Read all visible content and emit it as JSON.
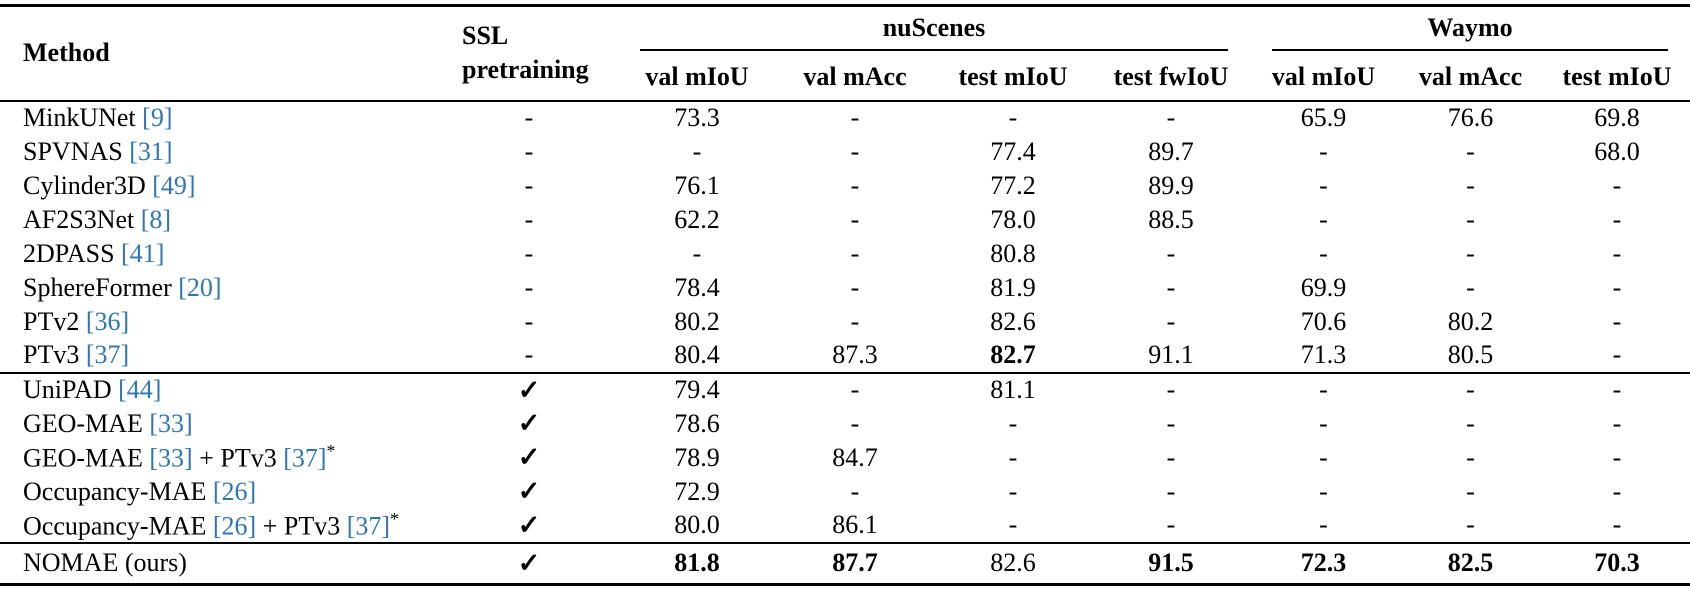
{
  "colors": {
    "citation": "#2f76b5",
    "text": "#000000",
    "background": "#ffffff"
  },
  "table": {
    "header": {
      "method": "Method",
      "ssl_line1": "SSL",
      "ssl_line2": "pretraining",
      "group_nuscenes": "nuScenes",
      "group_waymo": "Waymo",
      "nuscenes_cols": [
        "val mIoU",
        "val mAcc",
        "test mIoU",
        "test fwIoU"
      ],
      "waymo_cols": [
        "val mIoU",
        "val mAcc",
        "test mIoU"
      ]
    },
    "checkmark": "✓",
    "dash": "-",
    "groups": [
      {
        "rows": [
          {
            "method": [
              {
                "text": "MinkUNet ",
                "type": "text"
              },
              {
                "text": "[9]",
                "type": "cite"
              }
            ],
            "ssl": "-",
            "values": [
              "73.3",
              "-",
              "-",
              "-",
              "65.9",
              "76.6",
              "69.8"
            ],
            "bold": [
              false,
              false,
              false,
              false,
              false,
              false,
              false
            ]
          },
          {
            "method": [
              {
                "text": "SPVNAS ",
                "type": "text"
              },
              {
                "text": "[31]",
                "type": "cite"
              }
            ],
            "ssl": "-",
            "values": [
              "-",
              "-",
              "77.4",
              "89.7",
              "-",
              "-",
              "68.0"
            ],
            "bold": [
              false,
              false,
              false,
              false,
              false,
              false,
              false
            ]
          },
          {
            "method": [
              {
                "text": "Cylinder3D ",
                "type": "text"
              },
              {
                "text": "[49]",
                "type": "cite"
              }
            ],
            "ssl": "-",
            "values": [
              "76.1",
              "-",
              "77.2",
              "89.9",
              "-",
              "-",
              "-"
            ],
            "bold": [
              false,
              false,
              false,
              false,
              false,
              false,
              false
            ]
          },
          {
            "method": [
              {
                "text": "AF2S3Net ",
                "type": "text"
              },
              {
                "text": "[8]",
                "type": "cite"
              }
            ],
            "ssl": "-",
            "values": [
              "62.2",
              "-",
              "78.0",
              "88.5",
              "-",
              "-",
              "-"
            ],
            "bold": [
              false,
              false,
              false,
              false,
              false,
              false,
              false
            ]
          },
          {
            "method": [
              {
                "text": "2DPASS ",
                "type": "text"
              },
              {
                "text": "[41]",
                "type": "cite"
              }
            ],
            "ssl": "-",
            "values": [
              "-",
              "-",
              "80.8",
              "-",
              "-",
              "-",
              "-"
            ],
            "bold": [
              false,
              false,
              false,
              false,
              false,
              false,
              false
            ]
          },
          {
            "method": [
              {
                "text": "SphereFormer ",
                "type": "text"
              },
              {
                "text": "[20]",
                "type": "cite"
              }
            ],
            "ssl": "-",
            "values": [
              "78.4",
              "-",
              "81.9",
              "-",
              "69.9",
              "-",
              "-"
            ],
            "bold": [
              false,
              false,
              false,
              false,
              false,
              false,
              false
            ]
          },
          {
            "method": [
              {
                "text": "PTv2 ",
                "type": "text"
              },
              {
                "text": "[36]",
                "type": "cite"
              }
            ],
            "ssl": "-",
            "values": [
              "80.2",
              "-",
              "82.6",
              "-",
              "70.6",
              "80.2",
              "-"
            ],
            "bold": [
              false,
              false,
              false,
              false,
              false,
              false,
              false
            ]
          },
          {
            "method": [
              {
                "text": "PTv3 ",
                "type": "text"
              },
              {
                "text": "[37]",
                "type": "cite"
              }
            ],
            "ssl": "-",
            "values": [
              "80.4",
              "87.3",
              "82.7",
              "91.1",
              "71.3",
              "80.5",
              "-"
            ],
            "bold": [
              false,
              false,
              true,
              false,
              false,
              false,
              false
            ]
          }
        ]
      },
      {
        "rows": [
          {
            "method": [
              {
                "text": "UniPAD ",
                "type": "text"
              },
              {
                "text": "[44]",
                "type": "cite"
              }
            ],
            "ssl": "✓",
            "values": [
              "79.4",
              "-",
              "81.1",
              "-",
              "-",
              "-",
              "-"
            ],
            "bold": [
              false,
              false,
              false,
              false,
              false,
              false,
              false
            ]
          },
          {
            "method": [
              {
                "text": "GEO-MAE ",
                "type": "text"
              },
              {
                "text": "[33]",
                "type": "cite"
              }
            ],
            "ssl": "✓",
            "values": [
              "78.6",
              "-",
              "-",
              "-",
              "-",
              "-",
              "-"
            ],
            "bold": [
              false,
              false,
              false,
              false,
              false,
              false,
              false
            ]
          },
          {
            "method": [
              {
                "text": "GEO-MAE ",
                "type": "text"
              },
              {
                "text": "[33]",
                "type": "cite"
              },
              {
                "text": " + PTv3 ",
                "type": "text"
              },
              {
                "text": "[37]",
                "type": "cite"
              },
              {
                "text": "*",
                "type": "sup"
              }
            ],
            "ssl": "✓",
            "values": [
              "78.9",
              "84.7",
              "-",
              "-",
              "-",
              "-",
              "-"
            ],
            "bold": [
              false,
              false,
              false,
              false,
              false,
              false,
              false
            ]
          },
          {
            "method": [
              {
                "text": "Occupancy-MAE ",
                "type": "text"
              },
              {
                "text": "[26]",
                "type": "cite"
              }
            ],
            "ssl": "✓",
            "values": [
              "72.9",
              "-",
              "-",
              "-",
              "-",
              "-",
              "-"
            ],
            "bold": [
              false,
              false,
              false,
              false,
              false,
              false,
              false
            ]
          },
          {
            "method": [
              {
                "text": "Occupancy-MAE ",
                "type": "text"
              },
              {
                "text": "[26]",
                "type": "cite"
              },
              {
                "text": " + PTv3 ",
                "type": "text"
              },
              {
                "text": "[37]",
                "type": "cite"
              },
              {
                "text": "*",
                "type": "sup"
              }
            ],
            "ssl": "✓",
            "values": [
              "80.0",
              "86.1",
              "-",
              "-",
              "-",
              "-",
              "-"
            ],
            "bold": [
              false,
              false,
              false,
              false,
              false,
              false,
              false
            ]
          }
        ]
      },
      {
        "rows": [
          {
            "method": [
              {
                "text": "NOMAE (ours)",
                "type": "text"
              }
            ],
            "ssl": "✓",
            "values": [
              "81.8",
              "87.7",
              "82.6",
              "91.5",
              "72.3",
              "82.5",
              "70.3"
            ],
            "bold": [
              true,
              true,
              false,
              true,
              true,
              true,
              true
            ]
          }
        ]
      }
    ]
  }
}
